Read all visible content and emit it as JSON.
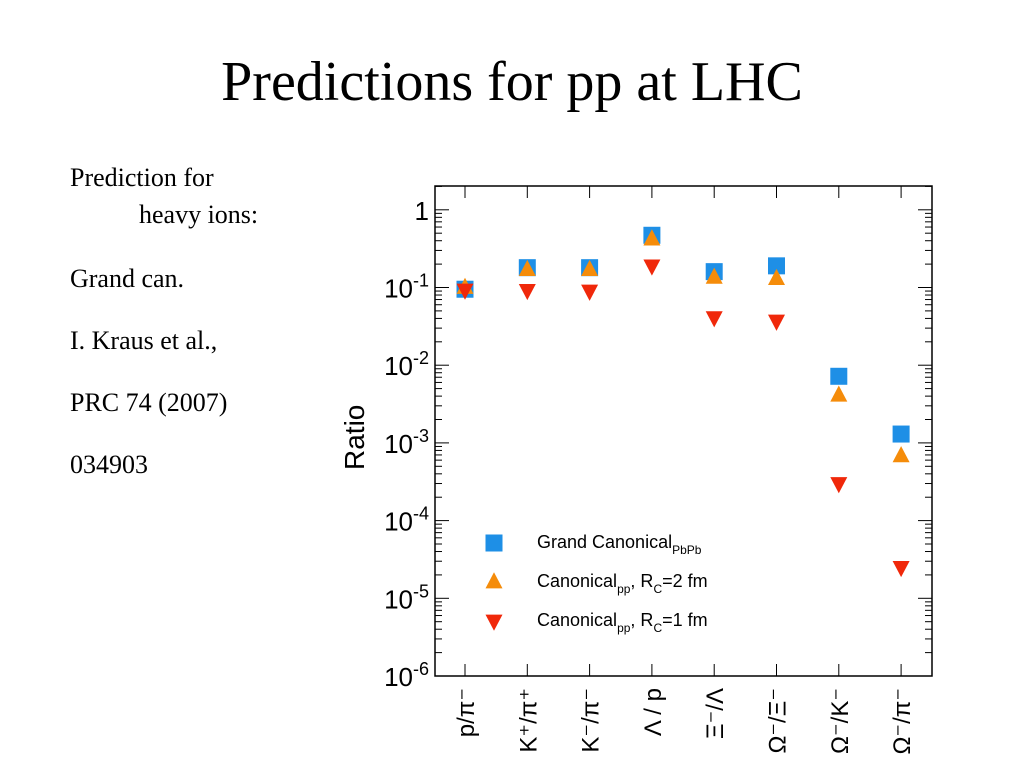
{
  "slide": {
    "title": "Predictions for pp at LHC",
    "notes": {
      "line1": "Prediction for",
      "line2": "heavy ions:",
      "line3": "Grand can.",
      "line4": "I. Kraus et al.,",
      "line5": "PRC 74 (2007)",
      "line6": "034903"
    }
  },
  "chart_data": {
    "type": "scatter",
    "ylabel": "Ratio",
    "yscale": "log",
    "ylim": [
      1e-06,
      3
    ],
    "categories": [
      "p/π⁻",
      "K⁺/π⁺",
      "K⁻/π⁻",
      "Λ / p",
      "Ξ⁻/Λ",
      "Ω⁻/Ξ⁻",
      "Ω⁻/K⁻",
      "Ω⁻/π⁻"
    ],
    "y_ticks": [
      {
        "value": 1,
        "base": "1",
        "exp": ""
      },
      {
        "value": 0.1,
        "base": "10",
        "exp": "-1"
      },
      {
        "value": 0.01,
        "base": "10",
        "exp": "-2"
      },
      {
        "value": 0.001,
        "base": "10",
        "exp": "-3"
      },
      {
        "value": 0.0001,
        "base": "10",
        "exp": "-4"
      },
      {
        "value": 1e-05,
        "base": "10",
        "exp": "-5"
      },
      {
        "value": 1e-06,
        "base": "10",
        "exp": "-6"
      }
    ],
    "series": [
      {
        "name": "Grand Canonical_PbPb",
        "marker": "square",
        "color": "#1e8fe6",
        "values": [
          0.095,
          0.18,
          0.18,
          0.47,
          0.16,
          0.19,
          0.0072,
          0.0013
        ]
      },
      {
        "name": "Canonical_pp, R_C=2 fm",
        "marker": "triangle-up",
        "color": "#f58c0a",
        "values": [
          0.1,
          0.17,
          0.17,
          0.42,
          0.135,
          0.13,
          0.0041,
          0.00068
        ]
      },
      {
        "name": "Canonical_pp, R_C=1 fm",
        "marker": "triangle-down",
        "color": "#f0280a",
        "values": [
          0.093,
          0.092,
          0.09,
          0.19,
          0.041,
          0.037,
          0.0003,
          2.5e-05
        ]
      }
    ],
    "legend": {
      "position": "bottom-center",
      "entries": [
        {
          "main": "Grand Canonical",
          "sub": "PbPb",
          "rest": ""
        },
        {
          "main": "Canonical",
          "sub": "pp",
          "rest": ", R",
          "rsub": "C",
          "tail": "=2 fm"
        },
        {
          "main": "Canonical",
          "sub": "pp",
          "rest": ", R",
          "rsub": "C",
          "tail": "=1 fm"
        }
      ]
    }
  }
}
